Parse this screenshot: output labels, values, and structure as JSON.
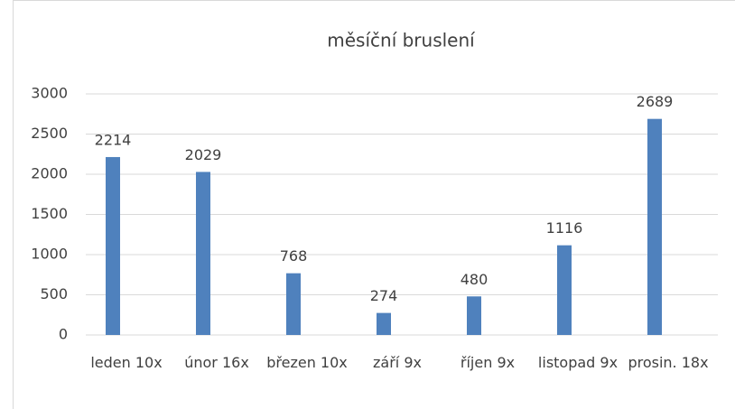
{
  "chart_data": {
    "type": "bar",
    "title": "měsíční bruslení",
    "categories": [
      "leden 10x",
      "únor 16x",
      "březen 10x",
      "září 9x",
      "říjen 9x",
      "listopad 9x",
      "prosin. 18x"
    ],
    "values": [
      2214,
      2029,
      768,
      274,
      480,
      1116,
      2689
    ],
    "color": "#4f81bd",
    "ylim": [
      0,
      3000
    ],
    "yticks": [
      0,
      500,
      1000,
      1500,
      2000,
      2500,
      3000
    ],
    "grid": true
  }
}
